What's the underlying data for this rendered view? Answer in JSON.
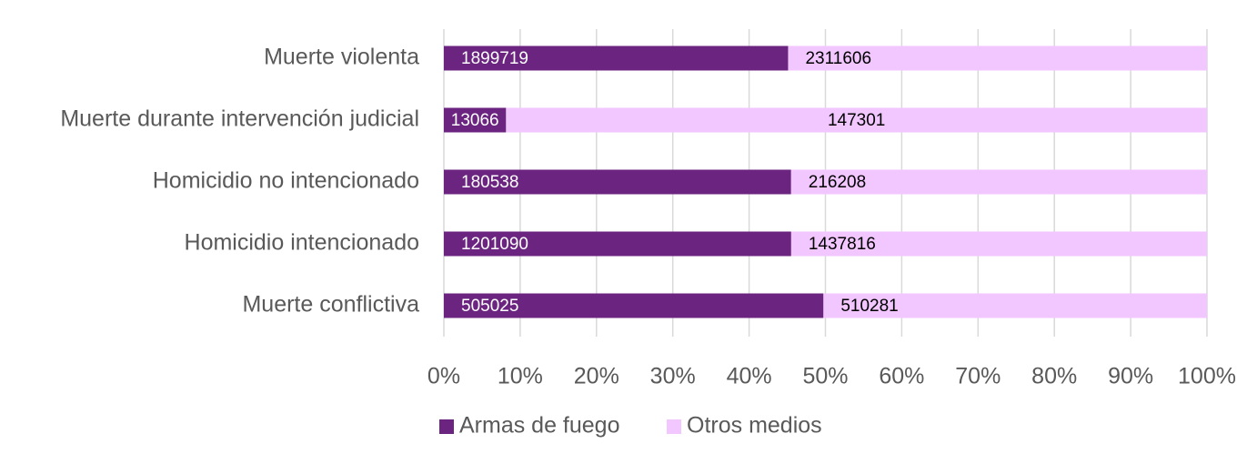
{
  "chart_data": {
    "type": "bar",
    "orientation": "horizontal",
    "stacking": "percent",
    "categories": [
      "Muerte violenta",
      "Muerte durante intervención judicial",
      "Homicidio no intencionado",
      "Homicidio intencionado",
      "Muerte conflictiva"
    ],
    "series": [
      {
        "name": "Armas de fuego",
        "color": "#6b2580",
        "label_color": "#ffffff",
        "values": [
          1899719,
          13066,
          180538,
          1201090,
          505025
        ]
      },
      {
        "name": "Otros medios",
        "color": "#f2c6ff",
        "label_color": "#000000",
        "values": [
          2311606,
          147301,
          216208,
          1437816,
          510281
        ]
      }
    ],
    "x_ticks": [
      "0%",
      "10%",
      "20%",
      "30%",
      "40%",
      "50%",
      "60%",
      "70%",
      "80%",
      "90%",
      "100%"
    ],
    "xlim": [
      0,
      100
    ],
    "grid": true,
    "legend_position": "bottom",
    "title": "",
    "xlabel": "",
    "ylabel": ""
  }
}
